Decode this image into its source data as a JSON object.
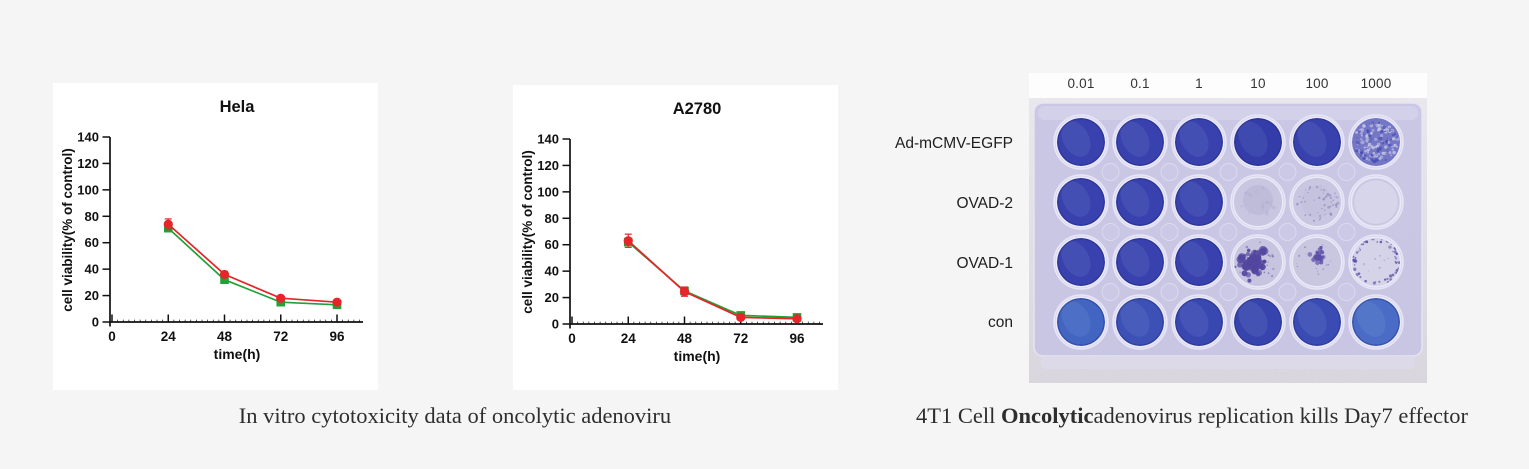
{
  "page": {
    "background": "#f5f5f6"
  },
  "chart_data": [
    {
      "type": "line",
      "title": "Hela",
      "xlabel": "time(h)",
      "ylabel": "cell viability(% of control)",
      "x": [
        24,
        48,
        72,
        96
      ],
      "xticks": [
        0,
        24,
        48,
        72,
        96
      ],
      "ylim": [
        0,
        140
      ],
      "ytick_step": 20,
      "grid": false,
      "legend": "none",
      "series": [
        {
          "name": "green-squares",
          "marker": "square",
          "color": "#23a038",
          "values": [
            71,
            32,
            15,
            13
          ],
          "errors": [
            2,
            1.5,
            1,
            1
          ]
        },
        {
          "name": "red-circles",
          "marker": "circle",
          "color": "#e62429",
          "values": [
            74,
            36,
            18,
            15
          ],
          "errors": [
            4,
            2,
            1,
            1
          ]
        }
      ]
    },
    {
      "type": "line",
      "title": "A2780",
      "xlabel": "time(h)",
      "ylabel": "cell viability(% of control)",
      "x": [
        24,
        48,
        72,
        96
      ],
      "xticks": [
        0,
        24,
        48,
        72,
        96
      ],
      "ylim": [
        0,
        140
      ],
      "ytick_step": 20,
      "grid": false,
      "legend": "none",
      "series": [
        {
          "name": "green-squares",
          "marker": "square",
          "color": "#23a038",
          "values": [
            62,
            25,
            6.5,
            5
          ],
          "errors": [
            2,
            1.5,
            1,
            1
          ]
        },
        {
          "name": "red-circles",
          "marker": "circle",
          "color": "#e62429",
          "values": [
            63,
            24.5,
            5,
            4
          ],
          "errors": [
            5,
            3.5,
            1,
            1
          ]
        }
      ]
    }
  ],
  "plate": {
    "columns": [
      "0.01",
      "0.1",
      "1",
      "10",
      "100",
      "1000"
    ],
    "rows": [
      {
        "label": "Ad-mCMV-EGFP",
        "wells": [
          {
            "type": "full"
          },
          {
            "type": "full"
          },
          {
            "type": "full"
          },
          {
            "type": "full",
            "color": "#333ca9"
          },
          {
            "type": "full"
          },
          {
            "type": "mottled"
          }
        ]
      },
      {
        "label": "OVAD-2",
        "wells": [
          {
            "type": "full"
          },
          {
            "type": "full"
          },
          {
            "type": "full"
          },
          {
            "type": "faint"
          },
          {
            "type": "faint-speckle"
          },
          {
            "type": "empty"
          }
        ]
      },
      {
        "label": "OVAD-1",
        "wells": [
          {
            "type": "full"
          },
          {
            "type": "full"
          },
          {
            "type": "full"
          },
          {
            "type": "patch-large"
          },
          {
            "type": "patch-small"
          },
          {
            "type": "rim-speckle"
          }
        ]
      },
      {
        "label": "con",
        "wells": [
          {
            "type": "full",
            "color": "#4365c2"
          },
          {
            "type": "full",
            "color": "#3c50b6"
          },
          {
            "type": "full",
            "color": "#3947b0"
          },
          {
            "type": "full",
            "color": "#3844ae"
          },
          {
            "type": "full",
            "color": "#3a4cb4"
          },
          {
            "type": "full",
            "color": "#4a6cc6"
          }
        ]
      }
    ],
    "colors": {
      "stained_well": "#3841ad",
      "partial_well": "#7477c5",
      "clear_well": "#d7d5ea",
      "colony": "#52479f",
      "plate_body": "#c8c5e4"
    }
  },
  "captions": {
    "figure_left": "In vitro cytotoxicity data of oncolytic adenoviru",
    "figure_right_segments": [
      {
        "text": "4T1 Cell ",
        "bold": false
      },
      {
        "text": "Oncolytic",
        "bold": true
      },
      {
        "text": "adenovirus replication kills Day7 effector",
        "bold": false
      }
    ]
  }
}
